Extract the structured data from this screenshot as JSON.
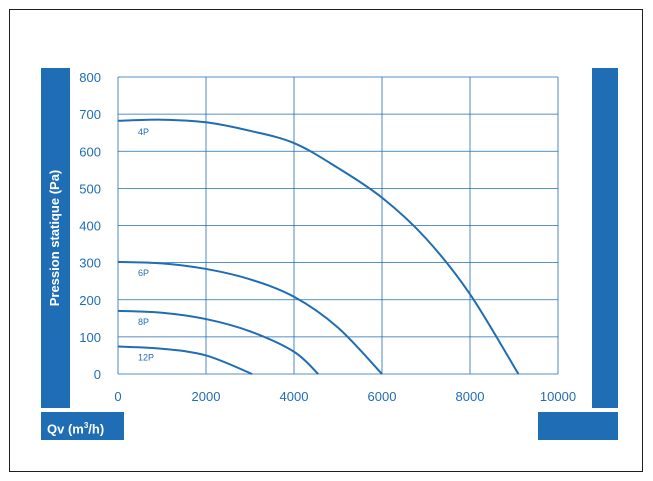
{
  "chart_data": {
    "type": "line",
    "title": "",
    "xlabel": "Qv (m",
    "xlabel_sup": "3",
    "xlabel_end": "/h)",
    "ylabel": "Pression statique (Pa)",
    "xlim": [
      0,
      10000
    ],
    "ylim": [
      0,
      800
    ],
    "xticks": [
      0,
      2000,
      4000,
      6000,
      8000,
      10000
    ],
    "yticks": [
      0,
      100,
      200,
      300,
      400,
      500,
      600,
      700,
      800
    ],
    "grid": true,
    "series": [
      {
        "name": "4P",
        "x": [
          0,
          1000,
          2000,
          3000,
          4000,
          5000,
          6000,
          7000,
          8000,
          9100
        ],
        "y": [
          682,
          685,
          678,
          655,
          622,
          555,
          475,
          365,
          215,
          0
        ]
      },
      {
        "name": "6P",
        "x": [
          0,
          1000,
          2000,
          3000,
          4000,
          5000,
          6000
        ],
        "y": [
          302,
          298,
          283,
          255,
          208,
          125,
          0
        ]
      },
      {
        "name": "8P",
        "x": [
          0,
          1000,
          2000,
          3000,
          4000,
          4550
        ],
        "y": [
          170,
          165,
          148,
          115,
          60,
          0
        ]
      },
      {
        "name": "12P",
        "x": [
          0,
          1000,
          2000,
          3050
        ],
        "y": [
          74,
          68,
          50,
          0
        ]
      }
    ]
  },
  "colors": {
    "accent": "#1f6db5",
    "grid": "#1f6db5",
    "frame": "#1f1f1f"
  }
}
